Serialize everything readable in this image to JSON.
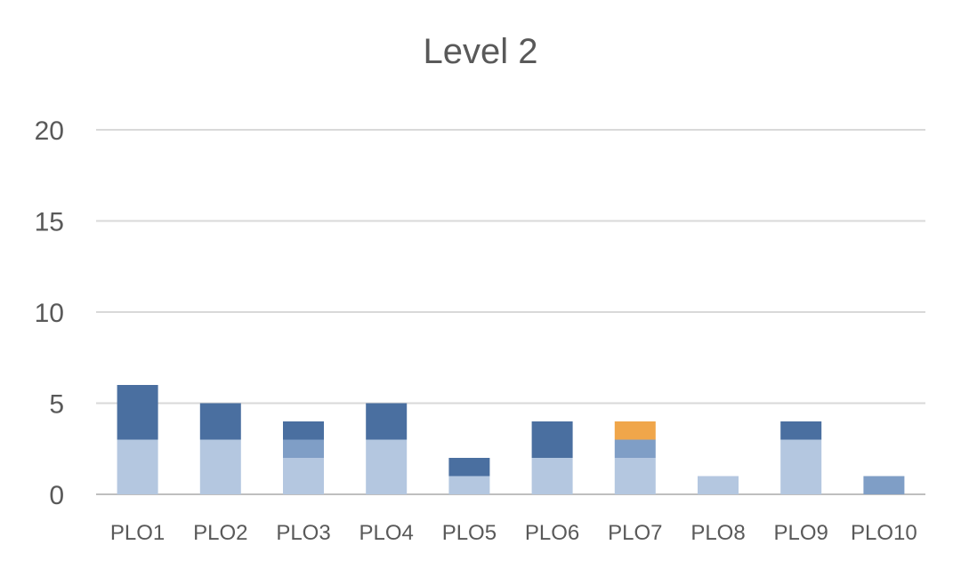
{
  "chart_data": {
    "type": "bar",
    "stacked": true,
    "title": "Level 2",
    "xlabel": "",
    "ylabel": "",
    "ylim": [
      0,
      20
    ],
    "yticks": [
      0,
      5,
      10,
      15,
      20
    ],
    "grid": true,
    "legend": "none",
    "categories": [
      "PLO1",
      "PLO2",
      "PLO3",
      "PLO4",
      "PLO5",
      "PLO6",
      "PLO7",
      "PLO8",
      "PLO9",
      "PLO10"
    ],
    "series": [
      {
        "color": "#b4c7e0",
        "values": [
          3,
          3,
          2,
          3,
          1,
          2,
          2,
          1,
          3,
          0
        ]
      },
      {
        "color": "#7f9ec6",
        "values": [
          0,
          0,
          1,
          0,
          0,
          0,
          1,
          0,
          0,
          1
        ]
      },
      {
        "color": "#4a6fa0",
        "values": [
          3,
          2,
          1,
          2,
          1,
          2,
          0,
          0,
          1,
          0
        ]
      },
      {
        "color": "#f0a64a",
        "values": [
          0,
          0,
          0,
          0,
          0,
          0,
          1,
          0,
          0,
          0
        ]
      }
    ]
  }
}
